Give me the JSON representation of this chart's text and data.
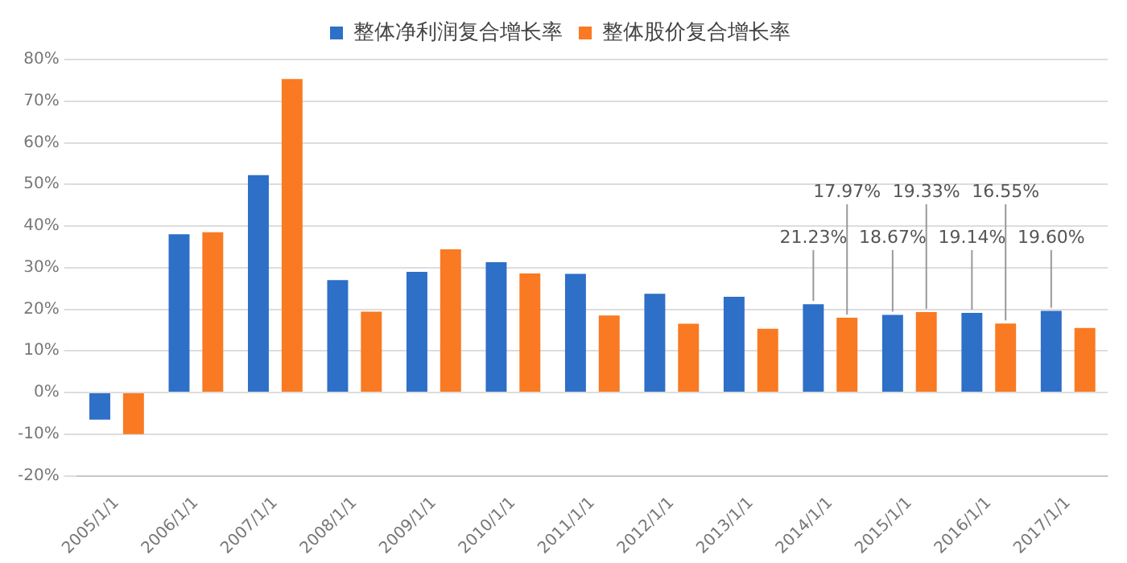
{
  "chart_data": {
    "type": "bar",
    "categories": [
      "2005/1/1",
      "2006/1/1",
      "2007/1/1",
      "2008/1/1",
      "2009/1/1",
      "2010/1/1",
      "2011/1/1",
      "2012/1/1",
      "2013/1/1",
      "2014/1/1",
      "2015/1/1",
      "2016/1/1",
      "2017/1/1"
    ],
    "series": [
      {
        "name": "整体净利润复合增长率",
        "color": "#2e6fc7",
        "values": [
          -6.5,
          38,
          52.2,
          27,
          29,
          31.3,
          28.5,
          23.7,
          23,
          21.23,
          18.67,
          19.14,
          19.6
        ],
        "value_labels": [
          null,
          null,
          null,
          null,
          null,
          null,
          null,
          null,
          null,
          "21.23%",
          "18.67%",
          "19.14%",
          "19.60%"
        ]
      },
      {
        "name": "整体股价复合增长率",
        "color": "#f97a22",
        "values": [
          -10,
          38.5,
          75.3,
          19.4,
          34.4,
          28.6,
          18.5,
          16.5,
          15.3,
          17.97,
          19.33,
          16.55,
          15.5
        ],
        "value_labels": [
          null,
          null,
          null,
          null,
          null,
          null,
          null,
          null,
          null,
          "17.97%",
          "19.33%",
          "16.55%",
          null
        ]
      }
    ],
    "ylim": [
      -20,
      80
    ],
    "yticks": [
      {
        "value": -20,
        "label": "-20%"
      },
      {
        "value": -10,
        "label": "-10%"
      },
      {
        "value": 0,
        "label": "0%"
      },
      {
        "value": 10,
        "label": "10%"
      },
      {
        "value": 20,
        "label": "20%"
      },
      {
        "value": 30,
        "label": "30%"
      },
      {
        "value": 40,
        "label": "40%"
      },
      {
        "value": 50,
        "label": "50%"
      },
      {
        "value": 60,
        "label": "60%"
      },
      {
        "value": 70,
        "label": "70%"
      },
      {
        "value": 80,
        "label": "80%"
      }
    ],
    "grid": "y",
    "legend": "top"
  }
}
